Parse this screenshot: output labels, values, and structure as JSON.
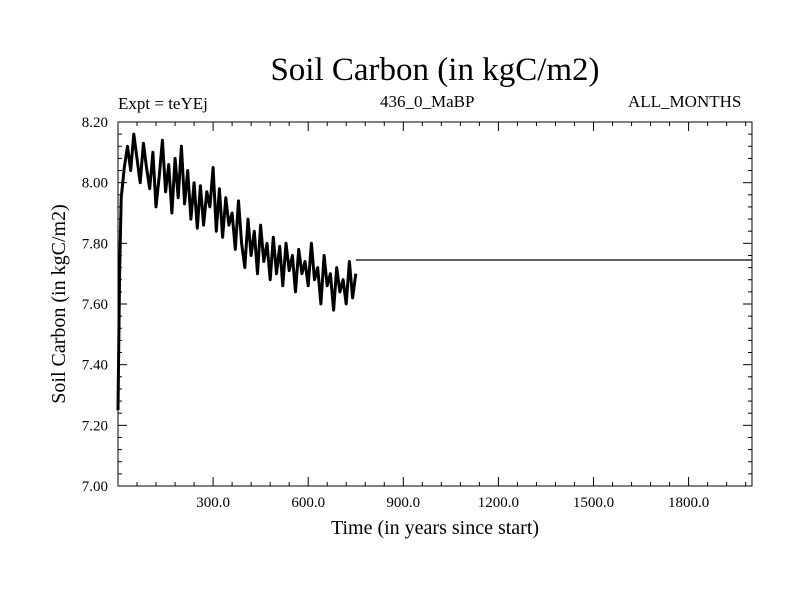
{
  "header": {
    "title": "Soil Carbon (in kgC/m2)",
    "experiment": "Expt = teYEj",
    "subtitle": "436_0_MaBP",
    "months": "ALL_MONTHS"
  },
  "chart_data": {
    "type": "line",
    "xlabel": "Time (in years since start)",
    "ylabel": "Soil Carbon (in kgC/m2)",
    "xlim": [
      0,
      2000
    ],
    "ylim": [
      7.0,
      8.2
    ],
    "x_ticks": [
      300,
      600,
      900,
      1200,
      1500,
      1800
    ],
    "x_tick_labels": [
      "300.0",
      "600.0",
      "900.0",
      "1200.0",
      "1500.0",
      "1800.0"
    ],
    "y_ticks": [
      7.0,
      7.2,
      7.4,
      7.6,
      7.8,
      8.0,
      8.2
    ],
    "y_tick_labels": [
      "7.00",
      "7.20",
      "7.40",
      "7.60",
      "7.80",
      "8.00",
      "8.20"
    ],
    "grid": false,
    "line_color": "#000000",
    "series": [
      {
        "x": [
          0,
          5,
          10,
          20,
          30,
          40,
          50,
          60,
          70,
          80,
          90,
          100,
          110,
          120,
          130,
          140,
          150,
          160,
          170,
          180,
          190,
          200,
          210,
          220,
          230,
          240,
          250,
          260,
          270,
          280,
          290,
          300,
          310,
          320,
          330,
          340,
          350,
          360,
          370,
          380,
          390,
          400,
          410,
          420,
          430,
          440,
          450,
          460,
          470,
          480,
          490,
          500,
          510,
          520,
          530,
          540,
          550,
          560,
          570,
          580,
          590,
          600,
          610,
          620,
          630,
          640,
          650,
          660,
          670,
          680,
          690,
          700,
          710,
          720,
          730,
          740,
          750
        ],
        "y": [
          7.25,
          7.7,
          7.95,
          8.05,
          8.12,
          8.04,
          8.16,
          8.08,
          8.0,
          8.13,
          8.05,
          7.98,
          8.1,
          7.92,
          8.02,
          8.14,
          7.97,
          8.06,
          7.9,
          8.08,
          7.95,
          8.12,
          7.93,
          8.04,
          7.88,
          8.0,
          7.85,
          7.99,
          7.86,
          7.97,
          7.92,
          8.05,
          7.84,
          7.98,
          7.82,
          7.95,
          7.86,
          7.9,
          7.78,
          7.94,
          7.8,
          7.72,
          7.88,
          7.76,
          7.84,
          7.7,
          7.86,
          7.74,
          7.8,
          7.68,
          7.82,
          7.7,
          7.79,
          7.66,
          7.8,
          7.71,
          7.76,
          7.64,
          7.78,
          7.7,
          7.74,
          7.66,
          7.8,
          7.68,
          7.72,
          7.6,
          7.76,
          7.66,
          7.7,
          7.58,
          7.72,
          7.64,
          7.68,
          7.6,
          7.74,
          7.62,
          7.7
        ]
      },
      {
        "x": [
          750,
          2000
        ],
        "y": [
          7.745,
          7.745
        ]
      }
    ]
  }
}
